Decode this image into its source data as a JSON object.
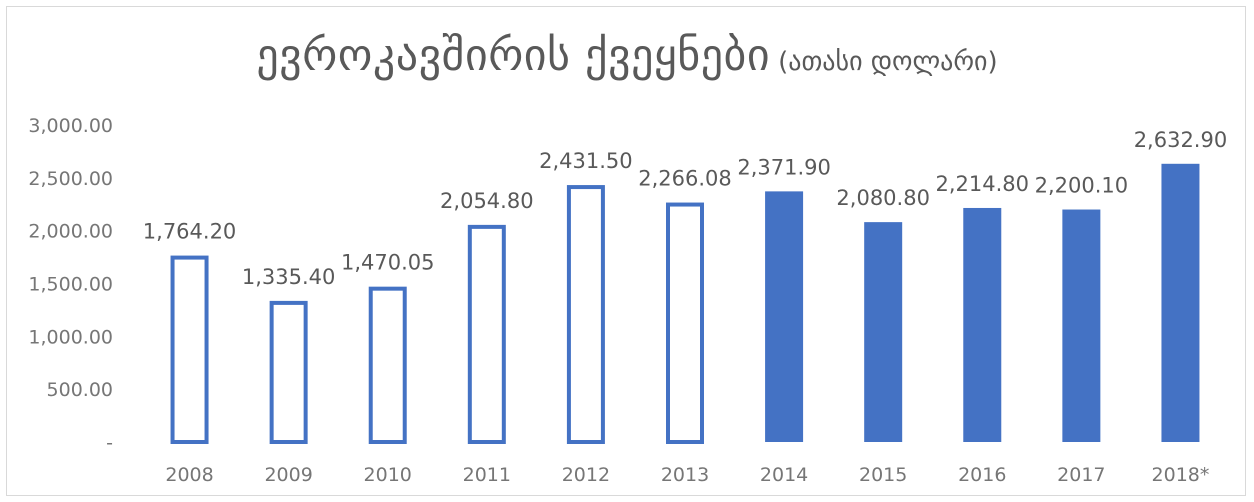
{
  "title": "ევროკავშირის ქვეყნები",
  "subtitle": "(ათასი დოლარი)",
  "colors": {
    "bar": "#4472c4",
    "text": "#595959",
    "axis": "#767676"
  },
  "chart_data": {
    "type": "bar",
    "title": "ევროკავშირის ქვეყნები (ათასი დოლარი)",
    "categories": [
      "2008",
      "2009",
      "2010",
      "2011",
      "2012",
      "2013",
      "2014",
      "2015",
      "2016",
      "2017",
      "2018*"
    ],
    "values": [
      1764.2,
      1335.4,
      1470.05,
      2054.8,
      2431.5,
      2266.08,
      2371.9,
      2080.8,
      2214.8,
      2200.1,
      2632.9
    ],
    "value_labels": [
      "1,764.20",
      "1,335.40",
      "1,470.05",
      "2,054.80",
      "2,431.50",
      "2,266.08",
      "2,371.90",
      "2,080.80",
      "2,214.80",
      "2,200.10",
      "2,632.90"
    ],
    "bar_style": [
      "outline",
      "outline",
      "outline",
      "outline",
      "outline",
      "outline",
      "filled",
      "filled",
      "filled",
      "filled",
      "filled"
    ],
    "y_ticks": [
      0,
      500,
      1000,
      1500,
      2000,
      2500,
      3000
    ],
    "y_tick_labels": [
      "-",
      "500.00",
      "1,000.00",
      "1,500.00",
      "2,000.00",
      "2,500.00",
      "3,000.00"
    ],
    "ylim": [
      0,
      3000
    ],
    "grid": false,
    "legend": "none"
  }
}
